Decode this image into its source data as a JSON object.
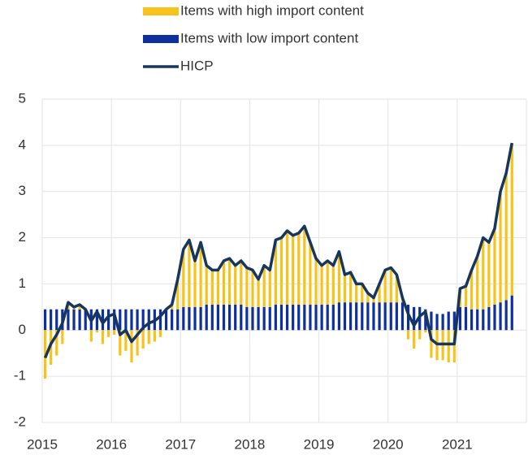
{
  "chart_data": {
    "type": "bar",
    "stacked": true,
    "grid": true,
    "legend": "top",
    "categories": [
      "2015",
      null,
      null,
      null,
      null,
      null,
      null,
      null,
      null,
      null,
      null,
      null,
      "2016",
      null,
      null,
      null,
      null,
      null,
      null,
      null,
      null,
      null,
      null,
      null,
      "2017",
      null,
      null,
      null,
      null,
      null,
      null,
      null,
      null,
      null,
      null,
      null,
      "2018",
      null,
      null,
      null,
      null,
      null,
      null,
      null,
      null,
      null,
      null,
      null,
      "2019",
      null,
      null,
      null,
      null,
      null,
      null,
      null,
      null,
      null,
      null,
      null,
      "2020",
      null,
      null,
      null,
      null,
      null,
      null,
      null,
      null,
      null,
      null,
      null,
      "2021",
      null,
      null,
      null,
      null,
      null,
      null,
      null,
      null,
      null
    ],
    "series": [
      {
        "name": "Items with high import content",
        "color": "#f7c31a",
        "values": [
          -1.05,
          -0.75,
          -0.55,
          -0.3,
          0.15,
          0.05,
          0.1,
          0,
          -0.25,
          -0.05,
          -0.3,
          -0.15,
          -0.1,
          -0.55,
          -0.45,
          -0.7,
          -0.55,
          -0.4,
          -0.3,
          -0.25,
          -0.15,
          0,
          0.1,
          0.65,
          1.25,
          1.45,
          1.0,
          1.4,
          0.85,
          0.75,
          0.75,
          0.95,
          1.0,
          0.85,
          0.95,
          0.85,
          0.8,
          0.6,
          0.9,
          0.8,
          1.4,
          1.45,
          1.6,
          1.5,
          1.55,
          1.7,
          1.35,
          1.0,
          0.85,
          0.95,
          0.85,
          1.1,
          0.6,
          0.65,
          0.4,
          0.4,
          0.2,
          0.1,
          0.4,
          0.7,
          0.75,
          0.6,
          0.1,
          -0.2,
          -0.4,
          -0.2,
          -0.05,
          -0.6,
          -0.65,
          -0.65,
          -0.7,
          -0.7,
          0.4,
          0.45,
          0.85,
          1.15,
          1.55,
          1.4,
          1.65,
          2.4,
          2.75,
          3.3
        ]
      },
      {
        "name": "Items with low import content",
        "color": "#0e2f9e",
        "values": [
          0.45,
          0.45,
          0.45,
          0.45,
          0.45,
          0.45,
          0.45,
          0.45,
          0.45,
          0.45,
          0.45,
          0.45,
          0.45,
          0.45,
          0.45,
          0.45,
          0.45,
          0.45,
          0.45,
          0.45,
          0.45,
          0.45,
          0.45,
          0.45,
          0.5,
          0.5,
          0.5,
          0.5,
          0.55,
          0.55,
          0.55,
          0.55,
          0.55,
          0.55,
          0.55,
          0.5,
          0.5,
          0.5,
          0.5,
          0.5,
          0.55,
          0.55,
          0.55,
          0.55,
          0.55,
          0.55,
          0.55,
          0.55,
          0.55,
          0.55,
          0.55,
          0.6,
          0.6,
          0.6,
          0.6,
          0.6,
          0.6,
          0.6,
          0.6,
          0.6,
          0.6,
          0.6,
          0.6,
          0.55,
          0.5,
          0.5,
          0.45,
          0.4,
          0.35,
          0.35,
          0.4,
          0.4,
          0.5,
          0.5,
          0.45,
          0.45,
          0.45,
          0.5,
          0.55,
          0.6,
          0.65,
          0.75
        ]
      },
      {
        "name": "HICP",
        "type": "line",
        "color": "#17365d",
        "values": [
          -0.6,
          -0.3,
          -0.1,
          0.15,
          0.6,
          0.5,
          0.55,
          0.45,
          0.2,
          0.4,
          0.15,
          0.3,
          0.35,
          -0.1,
          0,
          -0.25,
          -0.1,
          0.05,
          0.15,
          0.2,
          0.3,
          0.45,
          0.55,
          1.1,
          1.75,
          1.95,
          1.5,
          1.9,
          1.4,
          1.3,
          1.3,
          1.5,
          1.55,
          1.4,
          1.5,
          1.35,
          1.3,
          1.1,
          1.4,
          1.3,
          1.95,
          2.0,
          2.15,
          2.05,
          2.1,
          2.25,
          1.9,
          1.55,
          1.4,
          1.5,
          1.4,
          1.7,
          1.2,
          1.25,
          1.0,
          1.0,
          0.8,
          0.7,
          1.0,
          1.3,
          1.35,
          1.2,
          0.7,
          0.35,
          0.1,
          0.3,
          0.4,
          -0.2,
          -0.3,
          -0.3,
          -0.3,
          -0.3,
          0.9,
          0.95,
          1.3,
          1.6,
          2.0,
          1.9,
          2.2,
          3.0,
          3.4,
          4.05
        ]
      }
    ],
    "ylim": [
      -2,
      5
    ],
    "yticks": [
      -2,
      -1,
      0,
      1,
      2,
      3,
      4,
      5
    ]
  }
}
